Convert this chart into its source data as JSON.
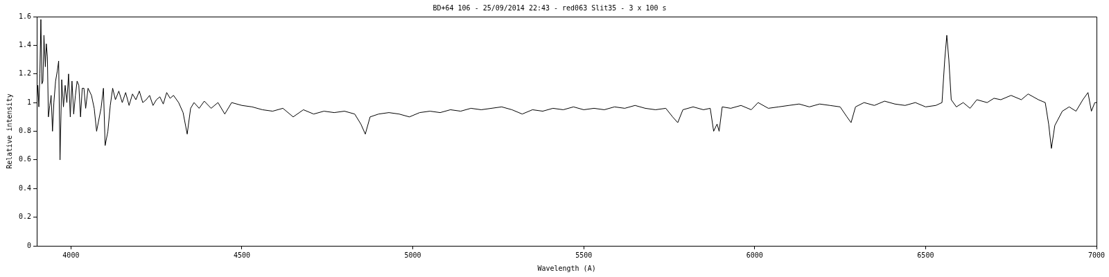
{
  "chart_data": {
    "type": "line",
    "title": "BD+64 106 - 25/09/2014 22:43 - red063 Slit35 - 3 x 100 s",
    "xlabel": "Wavelength (A)",
    "ylabel": "Relative intensity",
    "xlim": [
      3900,
      7000
    ],
    "xticks": [
      4000,
      4500,
      5000,
      5500,
      6000,
      6500,
      7000
    ],
    "ylim": [
      0,
      1.6
    ],
    "yticks": [
      0,
      0.2,
      0.4,
      0.6,
      0.8,
      1,
      1.2,
      1.4,
      1.6
    ],
    "grid": false,
    "legend": false,
    "marker": "none",
    "line_style": "solid",
    "series": [
      {
        "color": "#000000",
        "x": [
          3900,
          3903,
          3906,
          3909,
          3912,
          3915,
          3918,
          3921,
          3925,
          3928,
          3931,
          3934,
          3938,
          3942,
          3946,
          3950,
          3955,
          3960,
          3964,
          3968,
          3973,
          3978,
          3983,
          3988,
          3993,
          3998,
          4003,
          4008,
          4013,
          4018,
          4023,
          4028,
          4033,
          4038,
          4043,
          4050,
          4060,
          4068,
          4075,
          4088,
          4095,
          4100,
          4108,
          4115,
          4122,
          4130,
          4140,
          4150,
          4160,
          4170,
          4180,
          4190,
          4200,
          4210,
          4220,
          4230,
          4240,
          4250,
          4260,
          4270,
          4280,
          4290,
          4300,
          4315,
          4328,
          4340,
          4350,
          4360,
          4375,
          4390,
          4410,
          4430,
          4450,
          4470,
          4500,
          4530,
          4560,
          4590,
          4620,
          4650,
          4680,
          4710,
          4740,
          4770,
          4800,
          4830,
          4848,
          4861,
          4875,
          4900,
          4930,
          4960,
          4990,
          5020,
          5050,
          5080,
          5110,
          5140,
          5170,
          5200,
          5230,
          5260,
          5290,
          5320,
          5350,
          5380,
          5410,
          5440,
          5470,
          5500,
          5530,
          5560,
          5590,
          5620,
          5650,
          5680,
          5710,
          5740,
          5760,
          5775,
          5790,
          5820,
          5850,
          5870,
          5880,
          5890,
          5896,
          5905,
          5930,
          5960,
          5990,
          6010,
          6040,
          6070,
          6100,
          6130,
          6160,
          6190,
          6220,
          6250,
          6270,
          6282,
          6295,
          6320,
          6350,
          6380,
          6410,
          6440,
          6470,
          6500,
          6530,
          6548,
          6556,
          6562,
          6568,
          6575,
          6590,
          6610,
          6630,
          6650,
          6680,
          6700,
          6720,
          6750,
          6780,
          6800,
          6830,
          6850,
          6860,
          6868,
          6878,
          6900,
          6920,
          6940,
          6960,
          6975,
          6985,
          6995,
          7000
        ],
        "values": [
          1.0,
          1.12,
          0.97,
          1.2,
          1.58,
          1.13,
          1.15,
          1.47,
          1.25,
          1.41,
          1.32,
          0.9,
          0.98,
          1.05,
          0.8,
          1.0,
          1.15,
          1.22,
          1.29,
          0.6,
          1.16,
          0.97,
          1.12,
          1.0,
          1.2,
          0.9,
          1.15,
          0.92,
          1.05,
          1.15,
          1.12,
          0.9,
          1.1,
          1.1,
          0.96,
          1.1,
          1.05,
          0.96,
          0.8,
          0.96,
          1.1,
          0.7,
          0.8,
          0.98,
          1.1,
          1.02,
          1.08,
          1.0,
          1.07,
          0.98,
          1.06,
          1.02,
          1.08,
          1.0,
          1.02,
          1.05,
          0.98,
          1.02,
          1.04,
          0.99,
          1.07,
          1.03,
          1.05,
          1.0,
          0.93,
          0.78,
          0.96,
          1.0,
          0.96,
          1.01,
          0.96,
          1.0,
          0.92,
          1.0,
          0.98,
          0.97,
          0.95,
          0.94,
          0.96,
          0.9,
          0.95,
          0.92,
          0.94,
          0.93,
          0.94,
          0.92,
          0.85,
          0.78,
          0.9,
          0.92,
          0.93,
          0.92,
          0.9,
          0.93,
          0.94,
          0.93,
          0.95,
          0.94,
          0.96,
          0.95,
          0.96,
          0.97,
          0.95,
          0.92,
          0.95,
          0.94,
          0.96,
          0.95,
          0.97,
          0.95,
          0.96,
          0.95,
          0.97,
          0.96,
          0.98,
          0.96,
          0.95,
          0.96,
          0.9,
          0.86,
          0.95,
          0.97,
          0.95,
          0.96,
          0.8,
          0.85,
          0.8,
          0.97,
          0.96,
          0.98,
          0.95,
          1.0,
          0.96,
          0.97,
          0.98,
          0.99,
          0.97,
          0.99,
          0.98,
          0.97,
          0.9,
          0.86,
          0.97,
          1.0,
          0.98,
          1.01,
          0.99,
          0.98,
          1.0,
          0.97,
          0.98,
          1.0,
          1.3,
          1.47,
          1.3,
          1.02,
          0.97,
          1.0,
          0.96,
          1.02,
          1.0,
          1.03,
          1.02,
          1.05,
          1.02,
          1.06,
          1.02,
          1.0,
          0.85,
          0.68,
          0.84,
          0.94,
          0.97,
          0.94,
          1.02,
          1.07,
          0.94,
          1.0,
          1.0
        ]
      }
    ]
  }
}
